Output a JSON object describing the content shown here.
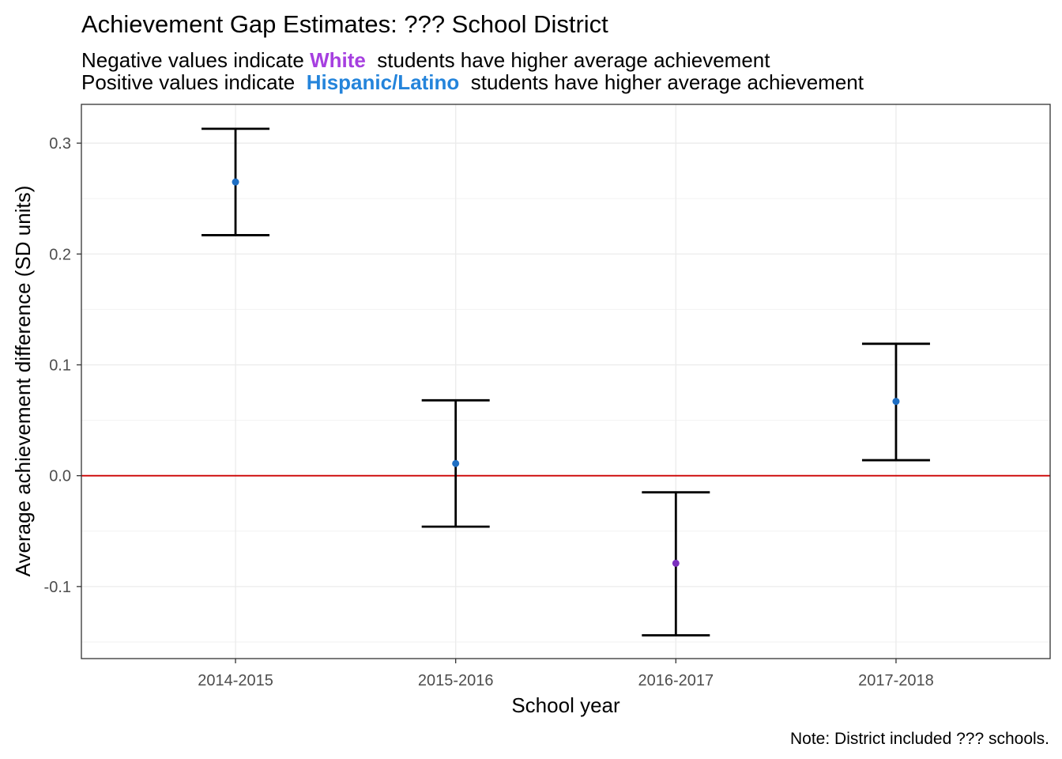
{
  "chart_data": {
    "type": "scatter",
    "title": "Achievement Gap Estimates: ??? School District",
    "subtitle_lines": [
      {
        "prefix": "Negative values indicate ",
        "group": "White",
        "suffix": "  students have higher average achievement",
        "group_color": "#A63FE0"
      },
      {
        "prefix": "Positive values indicate  ",
        "group": "Hispanic/Latino",
        "suffix": "  students have higher average achievement",
        "group_color": "#2484DB"
      }
    ],
    "xlabel": "School year",
    "ylabel": "Average achievement difference (SD units)",
    "caption": "Note: District included ??? schools.",
    "categories": [
      "2014-2015",
      "2015-2016",
      "2016-2017",
      "2017-2018"
    ],
    "estimates": [
      0.265,
      0.011,
      -0.079,
      0.067
    ],
    "lower": [
      0.217,
      -0.046,
      -0.144,
      0.014
    ],
    "upper": [
      0.313,
      0.068,
      -0.015,
      0.119
    ],
    "ylim": [
      -0.165,
      0.335
    ],
    "yticks": [
      -0.1,
      0.0,
      0.1,
      0.2,
      0.3
    ],
    "ytick_labels": [
      "-0.1",
      "0.0",
      "0.1",
      "0.2",
      "0.3"
    ],
    "reference_line": {
      "y": 0,
      "color": "#CC0000"
    },
    "point_colors": {
      "positive": "#1F6FC4",
      "negative": "#7B2FBE"
    },
    "grid": true,
    "legend": "none"
  }
}
